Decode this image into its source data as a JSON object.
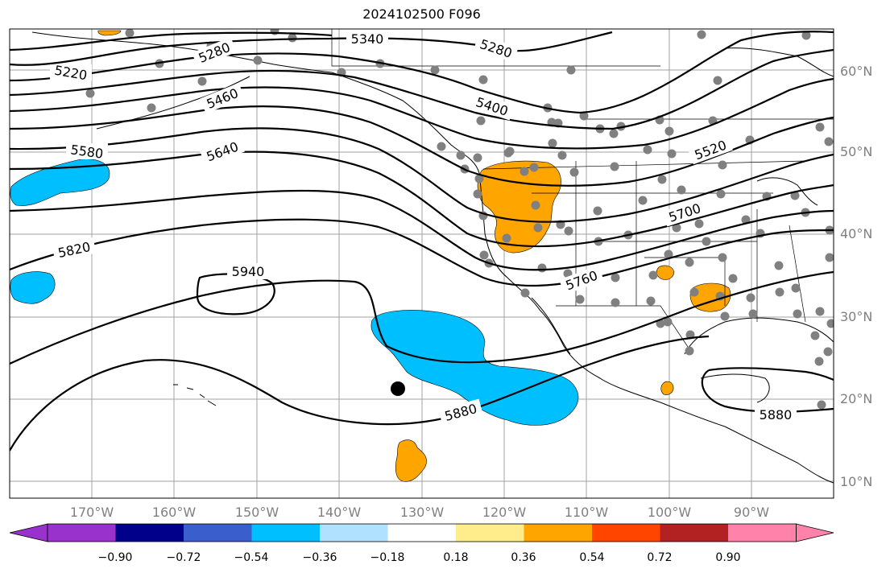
{
  "title": "2024102500 F096",
  "map": {
    "projection": "plate-carree",
    "lon_range": [
      -180,
      -80
    ],
    "lat_range": [
      8,
      65
    ],
    "lon_ticks": [
      "170°W",
      "160°W",
      "150°W",
      "140°W",
      "130°W",
      "120°W",
      "110°W",
      "100°W",
      "90°W"
    ],
    "lat_ticks": [
      "60°N",
      "50°N",
      "40°N",
      "30°N",
      "20°N",
      "10°N"
    ],
    "contour_labels": [
      "5220",
      "5280",
      "5340",
      "5280",
      "5400",
      "5460",
      "5580",
      "5640",
      "5520",
      "5700",
      "5820",
      "5940",
      "5760",
      "5880",
      "5880"
    ],
    "fill_colors": {
      "positive_light": "#ffa500",
      "negative_light": "#00bfff",
      "station_dots": "#808080",
      "contours": "#000000"
    }
  },
  "colorbar": {
    "colors": [
      "#9932cc",
      "#00008b",
      "#3a5fcd",
      "#00bfff",
      "#b0e2ff",
      "#ffffff",
      "#ffec8b",
      "#ffa500",
      "#ff4500",
      "#b22222",
      "#ff82ab"
    ],
    "tick_labels": [
      "−0.90",
      "−0.72",
      "−0.54",
      "−0.36",
      "−0.18",
      "0.18",
      "0.36",
      "0.54",
      "0.72",
      "0.90"
    ]
  }
}
